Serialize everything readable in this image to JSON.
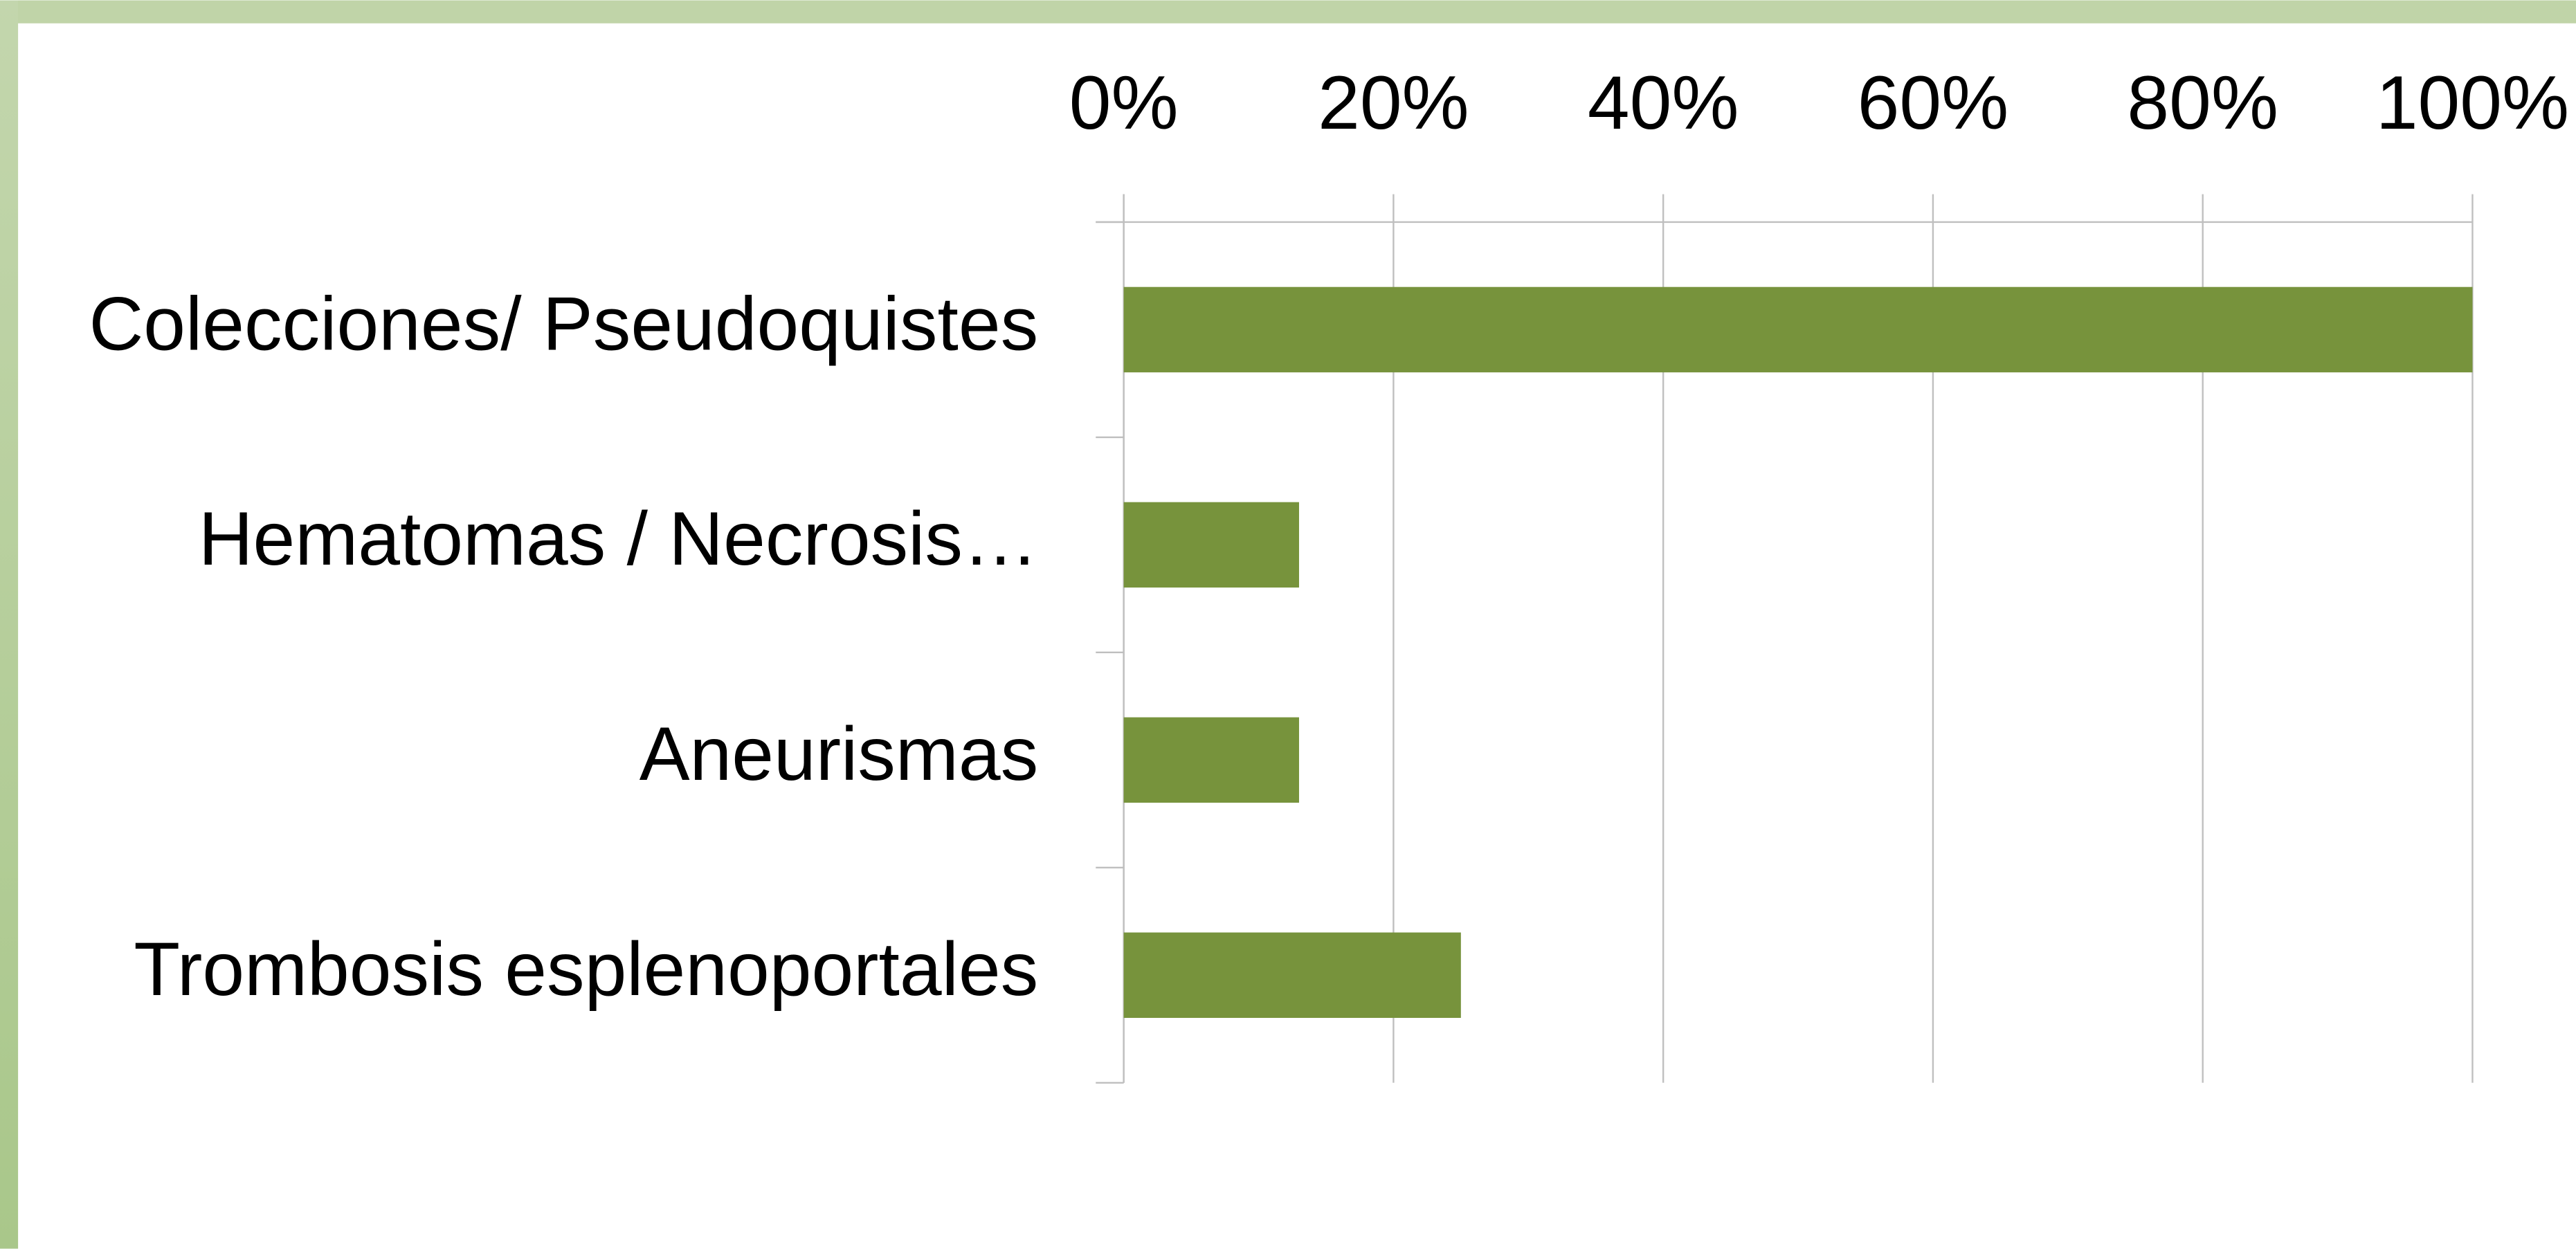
{
  "chart_data": {
    "type": "bar",
    "orientation": "horizontal",
    "categories": [
      "Colecciones/ Pseudoquistes",
      "Hematomas / Necrosis…",
      "Aneurismas",
      "Trombosis esplenoportales"
    ],
    "values": [
      100,
      13,
      13,
      25
    ],
    "color": "#77933c",
    "xlim": [
      0,
      100
    ],
    "xticks": [
      {
        "value": 0,
        "label": "0%"
      },
      {
        "value": 20,
        "label": "20%"
      },
      {
        "value": 40,
        "label": "40%"
      },
      {
        "value": 60,
        "label": "60%"
      },
      {
        "value": 80,
        "label": "80%"
      },
      {
        "value": 100,
        "label": "100%"
      }
    ],
    "grid": true
  }
}
